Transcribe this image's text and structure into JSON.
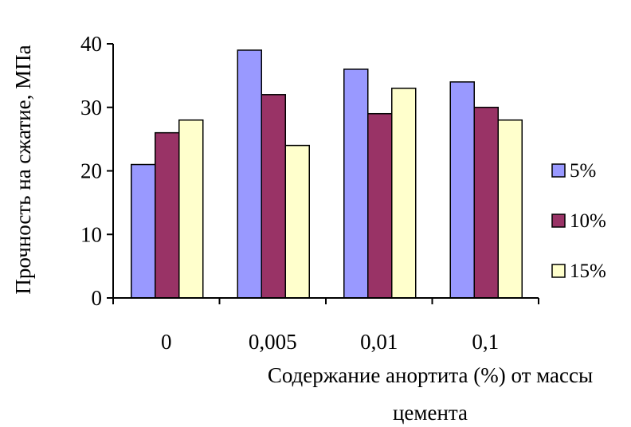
{
  "chart_data": {
    "type": "bar",
    "title": "",
    "xlabel": "Содержание анортита (%) от массы цемента",
    "xlabel_lines": [
      "Содержание анортита (%) от массы",
      "цемента"
    ],
    "ylabel": "Прочность на сжатие, МПа",
    "ylim": [
      0,
      40
    ],
    "yticks": [
      0,
      10,
      20,
      30,
      40
    ],
    "grid": false,
    "legend": "right",
    "categories": [
      "0",
      "0,005",
      "0,01",
      "0,1"
    ],
    "series": [
      {
        "name": "5%",
        "color": "#9999ff",
        "values": [
          21,
          39,
          36,
          34
        ]
      },
      {
        "name": "10%",
        "color": "#993366",
        "values": [
          26,
          32,
          29,
          30
        ]
      },
      {
        "name": "15%",
        "color": "#ffffcc",
        "values": [
          28,
          24,
          33,
          28
        ]
      }
    ]
  }
}
